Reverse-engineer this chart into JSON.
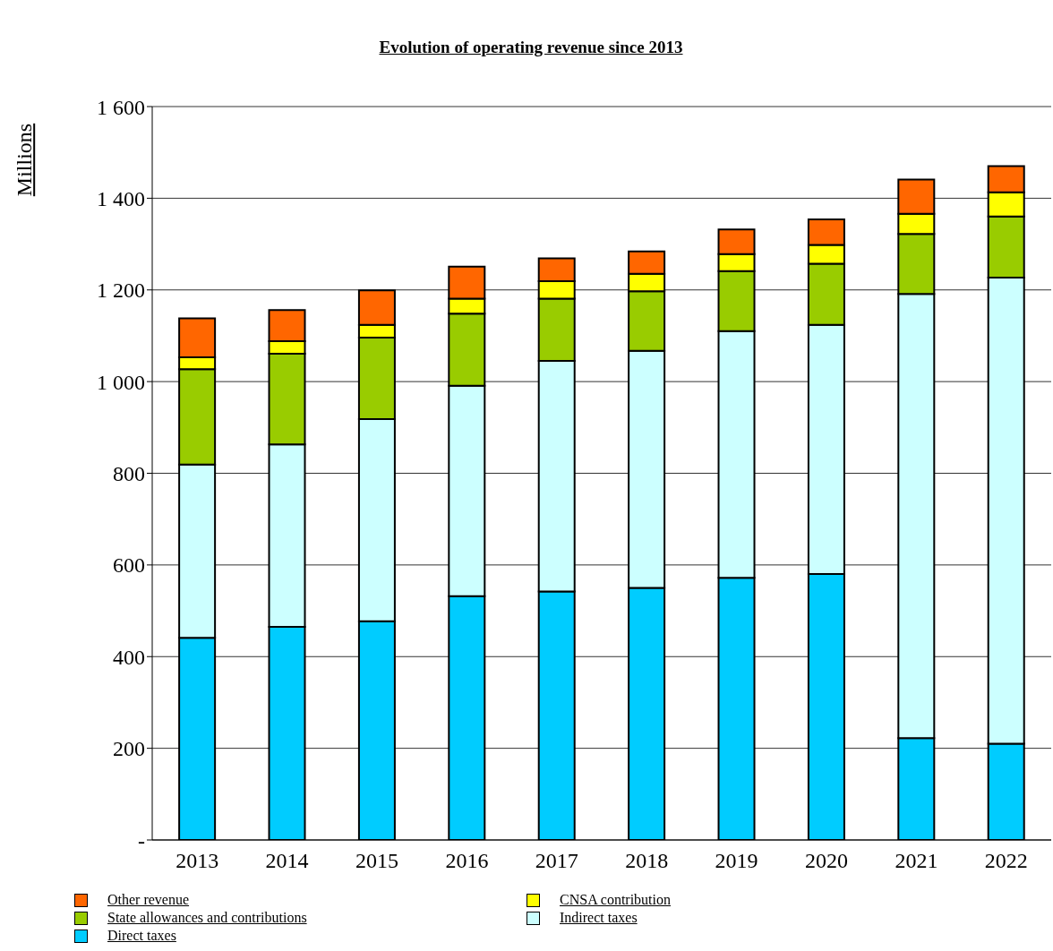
{
  "chart_data": {
    "type": "bar",
    "title": "Evolution of operating revenue since 2013",
    "ylabel": "Millions",
    "categories": [
      "2013",
      "2014",
      "2015",
      "2016",
      "2017",
      "2018",
      "2019",
      "2020",
      "2021",
      "2022"
    ],
    "stacked": true,
    "grid": "y",
    "legend": "bottom",
    "ylim": [
      0,
      1600
    ],
    "yticks": [
      {
        "value": 0,
        "label": "-"
      },
      200,
      400,
      600,
      800,
      {
        "value": 1000,
        "label": "1 000"
      },
      {
        "value": 1200,
        "label": "1 200"
      },
      {
        "value": 1400,
        "label": "1 400"
      },
      {
        "value": 1600,
        "label": "1 600"
      }
    ],
    "series": [
      {
        "name": "Direct taxes",
        "color": "#00ccff",
        "values": [
          441,
          465,
          477,
          532,
          542,
          550,
          572,
          580,
          222,
          210
        ]
      },
      {
        "name": "Indirect taxes",
        "color": "#ccffff",
        "values": [
          378,
          398,
          441,
          459,
          503,
          517,
          538,
          544,
          969,
          1017
        ]
      },
      {
        "name": "State allowances and contributions",
        "color": "#99cc00",
        "values": [
          208,
          198,
          178,
          157,
          136,
          130,
          131,
          133,
          131,
          133
        ]
      },
      {
        "name": "CNSA contribution",
        "color": "#ffff00",
        "values": [
          26,
          27,
          28,
          33,
          38,
          38,
          37,
          41,
          44,
          53
        ]
      },
      {
        "name": "Other revenue",
        "color": "#ff6600",
        "values": [
          85,
          68,
          75,
          70,
          50,
          49,
          54,
          56,
          75,
          57
        ]
      }
    ]
  }
}
